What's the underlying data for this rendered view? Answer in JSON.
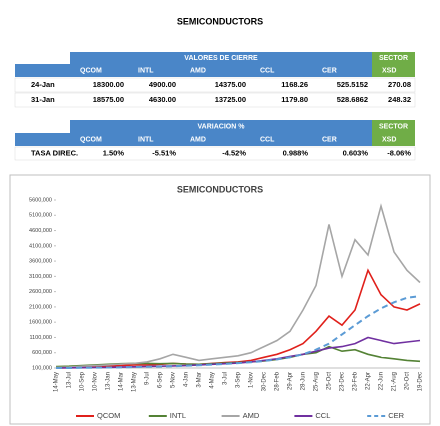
{
  "title": "SEMICONDUCTORS",
  "table1": {
    "group_header": "VALORES DE CIERRE",
    "sector_header": "SECTOR",
    "columns": [
      "QCOM",
      "INTL",
      "AMD",
      "CCL",
      "CER",
      "XSD"
    ],
    "rows": [
      [
        "24-Jan",
        "18300.00",
        "4900.00",
        "14375.00",
        "1168.26",
        "525.5152",
        "270.08"
      ],
      [
        "31-Jan",
        "18575.00",
        "4630.00",
        "13725.00",
        "1179.80",
        "528.6862",
        "248.32"
      ]
    ]
  },
  "table2": {
    "group_header": "VARIACION %",
    "sector_header": "SECTOR",
    "columns": [
      "QCOM",
      "INTL",
      "AMD",
      "CCL",
      "CER",
      "XSD"
    ],
    "rows": [
      [
        "TASA DIREC.",
        "1.50%",
        "-5.51%",
        "-4.52%",
        "0.988%",
        "0.603%",
        "-8.06%"
      ]
    ]
  },
  "chart_data": {
    "type": "line",
    "title": "SEMICONDUCTORS",
    "categories": [
      "14-May",
      "13-Jul",
      "10-Sep",
      "10-Nov",
      "13-Jan",
      "14-Mar",
      "13-May",
      "9-Jul",
      "6-Sep",
      "5-Nov",
      "4-Jan",
      "3-Mar",
      "4-May",
      "3-Jul",
      "3-Sep",
      "1-Nov",
      "30-Dec",
      "28-Feb",
      "29-Apr",
      "28-Jun",
      "25-Aug",
      "25-Oct",
      "23-Dec",
      "23-Feb",
      "22-Apr",
      "22-Jun",
      "21-Aug",
      "20-Oct",
      "19-Dec"
    ],
    "series": [
      {
        "name": "QCOM",
        "color": "#e0201b",
        "values": [
          100000,
          110000,
          130000,
          140000,
          160000,
          180000,
          200000,
          200000,
          220000,
          250000,
          230000,
          220000,
          250000,
          280000,
          300000,
          350000,
          450000,
          550000,
          700000,
          900000,
          1300000,
          1800000,
          1500000,
          2000000,
          3300000,
          2500000,
          2100000,
          2000000,
          2200000
        ]
      },
      {
        "name": "INTL",
        "color": "#548235",
        "values": [
          150000,
          160000,
          180000,
          200000,
          220000,
          240000,
          250000,
          250000,
          240000,
          250000,
          230000,
          220000,
          240000,
          260000,
          280000,
          300000,
          330000,
          380000,
          450000,
          550000,
          600000,
          800000,
          650000,
          700000,
          550000,
          450000,
          400000,
          350000,
          320000
        ]
      },
      {
        "name": "AMD",
        "color": "#a6a6a6",
        "values": [
          120000,
          130000,
          160000,
          180000,
          200000,
          230000,
          250000,
          300000,
          400000,
          550000,
          450000,
          350000,
          400000,
          450000,
          500000,
          600000,
          800000,
          1000000,
          1300000,
          2000000,
          2800000,
          4800000,
          3100000,
          4300000,
          3800000,
          5400000,
          3900000,
          3300000,
          2900000
        ]
      },
      {
        "name": "CCL",
        "color": "#7030a0",
        "values": [
          100000,
          105000,
          110000,
          115000,
          120000,
          130000,
          140000,
          150000,
          160000,
          170000,
          180000,
          200000,
          220000,
          240000,
          260000,
          300000,
          350000,
          400000,
          480000,
          550000,
          650000,
          750000,
          800000,
          900000,
          1100000,
          1000000,
          900000,
          950000,
          1000000
        ]
      },
      {
        "name": "CER",
        "color": "#5b9bd5",
        "dashed": true,
        "values": [
          100000,
          100000,
          105000,
          110000,
          115000,
          120000,
          130000,
          140000,
          150000,
          160000,
          175000,
          190000,
          210000,
          230000,
          260000,
          290000,
          330000,
          380000,
          450000,
          550000,
          700000,
          900000,
          1200000,
          1500000,
          1800000,
          2050000,
          2250000,
          2400000,
          2450000
        ]
      }
    ],
    "ylim": [
      100000,
      5600000
    ],
    "yticks": [
      {
        "value": 100000,
        "label": "100,000"
      },
      {
        "value": 600000,
        "label": "600,000"
      },
      {
        "value": 1100000,
        "label": "1100,000"
      },
      {
        "value": 1600000,
        "label": "1600,000"
      },
      {
        "value": 2100000,
        "label": "2100,000"
      },
      {
        "value": 2600000,
        "label": "2600,000"
      },
      {
        "value": 3100000,
        "label": "3100,000"
      },
      {
        "value": 3600000,
        "label": "3600,000"
      },
      {
        "value": 4100000,
        "label": "4100,000"
      },
      {
        "value": 4600000,
        "label": "4600,000"
      },
      {
        "value": 5100000,
        "label": "5100,000"
      },
      {
        "value": 5600000,
        "label": "5600,000"
      }
    ],
    "grid": false,
    "legend": "bottom"
  }
}
